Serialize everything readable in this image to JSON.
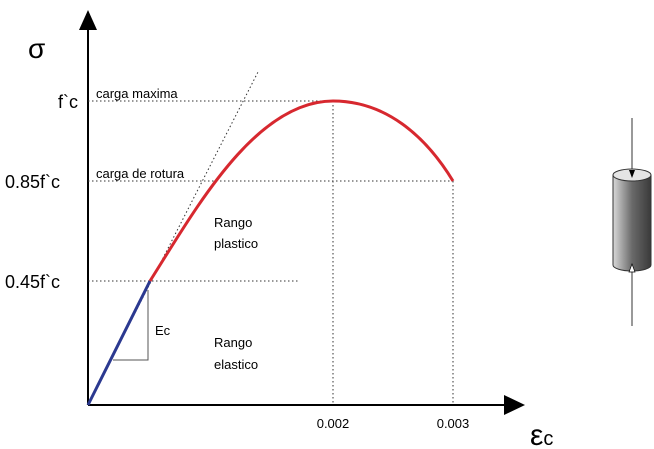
{
  "axes": {
    "y_label": "σ",
    "x_label": "ε",
    "x_label_sub": "c"
  },
  "y_levels": [
    "f`c",
    "0.85f`c",
    "0.45f`c"
  ],
  "x_levels": [
    "0.002",
    "0.003"
  ],
  "annotations": {
    "max_load": "carga maxima",
    "rupture_load": "carga de rotura",
    "plastic_range": [
      "Rango",
      "plastico"
    ],
    "elastic_range": [
      "Rango",
      "elastico"
    ],
    "modulus": "Ec"
  }
}
